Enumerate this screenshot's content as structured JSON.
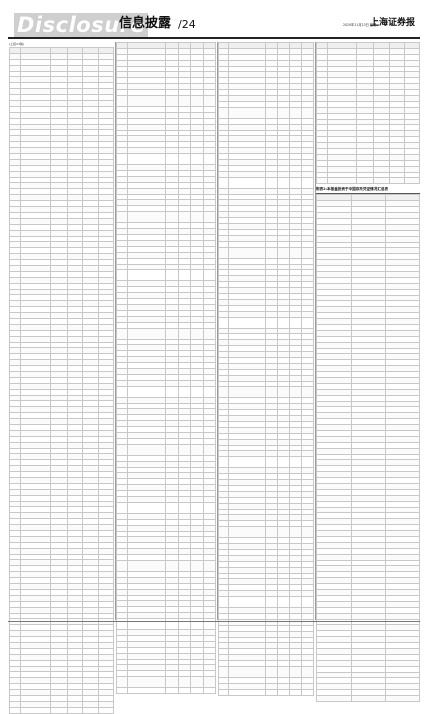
{
  "masthead": {
    "logo_word": "Disclosure",
    "section_title": "信息披露",
    "page_number": "/24",
    "date_line": "2020年11月23日 星期一",
    "paper_name": "上海证券报"
  },
  "columns": {
    "col1": {
      "caption": "(上接23版)"
    },
    "col4": {
      "section_heading": "附表2:本基金投资于中国存托凭证情况汇总表"
    }
  },
  "icons": {
    "masthead_rule": "rule",
    "column_divider": "divider"
  }
}
